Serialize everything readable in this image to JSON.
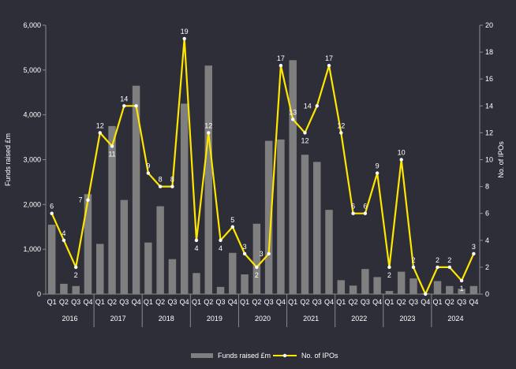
{
  "chart_data": {
    "type": "bar+line",
    "y_left_label": "Funds raised £m",
    "y_right_label": "No. of IPOs",
    "y_left_range": [
      0,
      6000
    ],
    "y_right_range": [
      0,
      20
    ],
    "y_left_ticks": [
      "0",
      "1,000",
      "2,000",
      "3,000",
      "4,000",
      "5,000",
      "6,000"
    ],
    "y_right_ticks": [
      "0",
      "2",
      "4",
      "6",
      "8",
      "10",
      "12",
      "14",
      "16",
      "18",
      "20"
    ],
    "quarters": [
      "Q1",
      "Q2",
      "Q3",
      "Q4"
    ],
    "years": [
      "2016",
      "2017",
      "2018",
      "2019",
      "2020",
      "2021",
      "2022",
      "2023",
      "2024"
    ],
    "series": [
      {
        "name": "Funds raised £m",
        "type": "bar",
        "color": "#7f7f7f",
        "values": [
          1550,
          230,
          180,
          2230,
          1120,
          3750,
          2100,
          4650,
          1150,
          1960,
          780,
          4250,
          470,
          5100,
          160,
          920,
          440,
          1570,
          3420,
          3450,
          5220,
          3110,
          2950,
          1880,
          310,
          190,
          560,
          380,
          70,
          500,
          350,
          20,
          290,
          180,
          120,
          180
        ]
      },
      {
        "name": "No. of IPOs",
        "type": "line",
        "color": "#ffe600",
        "values": [
          6,
          4,
          2,
          7,
          12,
          11,
          14,
          14,
          9,
          8,
          8,
          19,
          4,
          12,
          4,
          5,
          3,
          2,
          3,
          17,
          13,
          12,
          14,
          17,
          12,
          6,
          6,
          9,
          2,
          10,
          2,
          0,
          2,
          2,
          1,
          3
        ],
        "labels": [
          "6",
          "4",
          "2",
          "7",
          "12",
          "11",
          "14",
          "",
          "9",
          "8",
          "8",
          "19",
          "4",
          "12",
          "4",
          "5",
          "3",
          "2",
          "3",
          "17",
          "13",
          "12",
          "14",
          "17",
          "12",
          "6",
          "6",
          "9",
          "2",
          "10",
          "2",
          "",
          "2",
          "2",
          "1",
          "3"
        ]
      }
    ],
    "legend": {
      "position": "bottom-center",
      "items": [
        "Funds raised £m",
        "No. of IPOs"
      ]
    },
    "colors": {
      "background": "#2e2e38",
      "bar": "#7f7f7f",
      "line": "#ffe600",
      "axis": "#8a8a8a"
    }
  }
}
